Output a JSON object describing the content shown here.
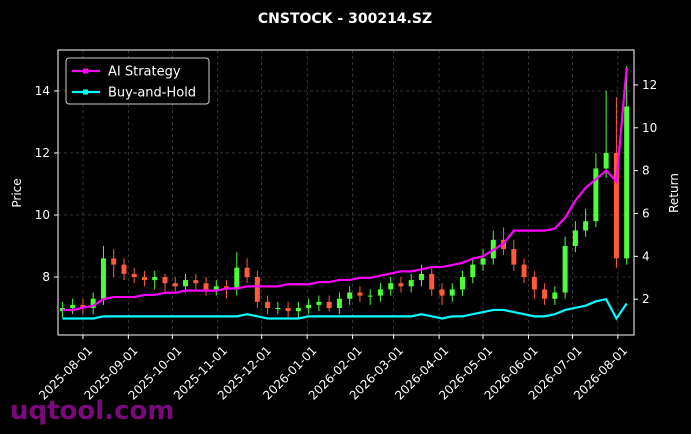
{
  "chart_data": {
    "type": "candlestick",
    "title": "CNSTOCK - 300214.SZ",
    "ylabel": "Price",
    "y2label": "Return",
    "watermark": "uqtool.com",
    "x": [
      "2025-07-18",
      "2025-07-25",
      "2025-08-01",
      "2025-08-08",
      "2025-08-15",
      "2025-08-22",
      "2025-08-29",
      "2025-09-05",
      "2025-09-12",
      "2025-09-19",
      "2025-09-26",
      "2025-10-03",
      "2025-10-10",
      "2025-10-17",
      "2025-10-24",
      "2025-10-31",
      "2025-11-07",
      "2025-11-14",
      "2025-11-21",
      "2025-11-28",
      "2025-12-05",
      "2025-12-12",
      "2025-12-19",
      "2025-12-26",
      "2026-01-02",
      "2026-01-09",
      "2026-01-16",
      "2026-01-23",
      "2026-01-30",
      "2026-02-06",
      "2026-02-13",
      "2026-02-20",
      "2026-02-27",
      "2026-03-06",
      "2026-03-13",
      "2026-03-20",
      "2026-03-27",
      "2026-04-03",
      "2026-04-10",
      "2026-04-17",
      "2026-04-24",
      "2026-05-01",
      "2026-05-08",
      "2026-05-15",
      "2026-05-22",
      "2026-05-29",
      "2026-06-05",
      "2026-06-12",
      "2026-06-19",
      "2026-06-26",
      "2026-07-03",
      "2026-07-10",
      "2026-07-17",
      "2026-07-24",
      "2026-07-31",
      "2026-08-07"
    ],
    "open": [
      6.9,
      7.0,
      7.1,
      7.0,
      7.3,
      8.6,
      8.4,
      8.1,
      8.0,
      7.9,
      8.0,
      7.8,
      7.7,
      7.9,
      7.8,
      7.6,
      7.7,
      7.6,
      8.3,
      8.0,
      7.2,
      7.0,
      7.0,
      6.9,
      7.0,
      7.1,
      7.2,
      7.0,
      7.3,
      7.5,
      7.4,
      7.4,
      7.6,
      7.8,
      7.7,
      7.9,
      8.1,
      7.6,
      7.4,
      7.6,
      8.0,
      8.4,
      8.6,
      9.2,
      8.9,
      8.4,
      8.0,
      7.6,
      7.3,
      7.5,
      9.0,
      9.5,
      9.8,
      11.5,
      12.0,
      8.6
    ],
    "high": [
      7.2,
      7.3,
      7.3,
      7.5,
      9.0,
      8.9,
      8.6,
      8.3,
      8.2,
      8.2,
      8.1,
      8.0,
      8.1,
      8.1,
      8.0,
      7.9,
      7.9,
      8.8,
      8.6,
      8.2,
      7.4,
      7.2,
      7.2,
      7.2,
      7.3,
      7.4,
      7.4,
      7.5,
      7.7,
      7.7,
      7.6,
      7.8,
      8.0,
      8.0,
      8.1,
      8.4,
      8.3,
      7.8,
      7.8,
      8.2,
      8.6,
      8.9,
      9.5,
      9.6,
      9.2,
      8.6,
      8.2,
      7.8,
      7.7,
      9.3,
      9.8,
      10.2,
      12.0,
      14.0,
      13.8,
      14.8
    ],
    "low": [
      6.7,
      6.8,
      6.8,
      6.8,
      7.1,
      8.0,
      7.9,
      7.8,
      7.7,
      7.6,
      7.5,
      7.5,
      7.5,
      7.6,
      7.4,
      7.4,
      7.3,
      7.4,
      7.8,
      7.0,
      6.8,
      6.8,
      6.7,
      6.7,
      6.8,
      6.9,
      6.9,
      6.8,
      7.1,
      7.2,
      7.1,
      7.2,
      7.4,
      7.5,
      7.5,
      7.7,
      7.4,
      7.1,
      7.2,
      7.4,
      7.8,
      8.2,
      8.4,
      8.7,
      8.2,
      7.8,
      7.3,
      7.1,
      7.1,
      7.3,
      8.8,
      9.3,
      9.6,
      11.2,
      8.3,
      8.4
    ],
    "close": [
      7.0,
      7.1,
      7.0,
      7.3,
      8.6,
      8.4,
      8.1,
      8.0,
      7.9,
      8.0,
      7.8,
      7.7,
      7.9,
      7.8,
      7.6,
      7.7,
      7.6,
      8.3,
      8.0,
      7.2,
      7.0,
      7.0,
      6.9,
      7.0,
      7.1,
      7.2,
      7.0,
      7.3,
      7.5,
      7.4,
      7.4,
      7.6,
      7.8,
      7.7,
      7.9,
      8.1,
      7.6,
      7.4,
      7.6,
      8.0,
      8.4,
      8.6,
      9.2,
      8.9,
      8.4,
      8.0,
      7.6,
      7.3,
      7.5,
      9.0,
      9.5,
      9.8,
      11.5,
      12.0,
      8.6,
      13.5
    ],
    "up_color": "#4dff3a",
    "down_color": "#ff5a3a",
    "series": [
      {
        "name": "AI Strategy",
        "color": "#ff00ff",
        "axis": "y2",
        "values": [
          1.5,
          1.5,
          1.6,
          1.7,
          2.0,
          2.1,
          2.1,
          2.1,
          2.2,
          2.2,
          2.3,
          2.3,
          2.4,
          2.4,
          2.4,
          2.4,
          2.5,
          2.5,
          2.6,
          2.6,
          2.6,
          2.6,
          2.7,
          2.7,
          2.7,
          2.8,
          2.8,
          2.9,
          2.9,
          3.0,
          3.0,
          3.1,
          3.2,
          3.3,
          3.3,
          3.4,
          3.5,
          3.5,
          3.6,
          3.7,
          3.9,
          4.0,
          4.3,
          4.6,
          5.2,
          5.2,
          5.2,
          5.2,
          5.3,
          5.8,
          6.6,
          7.2,
          7.6,
          8.0,
          7.5,
          12.8
        ]
      },
      {
        "name": "Buy-and-Hold",
        "color": "#00ffff",
        "axis": "y2",
        "values": [
          1.1,
          1.1,
          1.1,
          1.1,
          1.2,
          1.2,
          1.2,
          1.2,
          1.2,
          1.2,
          1.2,
          1.2,
          1.2,
          1.2,
          1.2,
          1.2,
          1.2,
          1.2,
          1.3,
          1.2,
          1.1,
          1.1,
          1.1,
          1.1,
          1.2,
          1.2,
          1.2,
          1.2,
          1.2,
          1.2,
          1.2,
          1.2,
          1.2,
          1.2,
          1.2,
          1.3,
          1.2,
          1.1,
          1.2,
          1.2,
          1.3,
          1.4,
          1.5,
          1.5,
          1.4,
          1.3,
          1.2,
          1.2,
          1.3,
          1.5,
          1.6,
          1.7,
          1.9,
          2.0,
          1.1,
          1.8
        ]
      }
    ],
    "xlim": [
      "2025-07-15",
      "2026-08-12"
    ],
    "xticks": [
      "2025-08-01",
      "2025-09-01",
      "2025-10-01",
      "2025-11-01",
      "2025-12-01",
      "2026-01-01",
      "2026-02-01",
      "2026-03-01",
      "2026-04-01",
      "2026-05-01",
      "2026-06-01",
      "2026-07-01",
      "2026-08-01"
    ],
    "ylim": [
      6.13,
      15.32
    ],
    "yticks": [
      8,
      10,
      12,
      14
    ],
    "y2lim": [
      0.33,
      13.63
    ],
    "y2ticks": [
      2,
      4,
      6,
      8,
      10,
      12
    ],
    "grid": true,
    "legend": "upper left"
  }
}
